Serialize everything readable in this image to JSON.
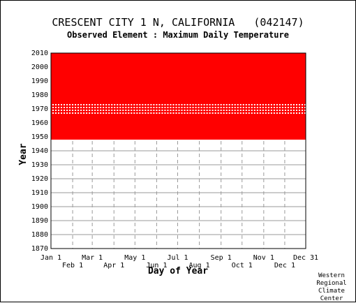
{
  "chart_data": {
    "type": "heatmap",
    "title": "CRESCENT CITY 1 N, CALIFORNIA   (042147)",
    "subtitle": "Observed Element : Maximum Daily Temperature",
    "xlabel": "Day of Year",
    "ylabel": "Year",
    "x_ticks_top": [
      "Jan 1",
      "Mar 1",
      "May 1",
      "Jul 1",
      "Sep 1",
      "Nov 1",
      "Dec 31"
    ],
    "x_ticks_bottom": [
      "Feb 1",
      "Apr 1",
      "Jun 1",
      "Aug 1",
      "Oct 1",
      "Dec 1"
    ],
    "x_tick_days": [
      1,
      32,
      60,
      91,
      121,
      152,
      182,
      213,
      244,
      274,
      305,
      335,
      365
    ],
    "y_ticks": [
      2010,
      2000,
      1990,
      1980,
      1970,
      1960,
      1950,
      1940,
      1930,
      1920,
      1910,
      1900,
      1890,
      1880,
      1870
    ],
    "xlim": [
      1,
      365
    ],
    "ylim": [
      1870,
      2010
    ],
    "data_period_years": [
      1948,
      2010
    ],
    "data_color": "#ff0000",
    "sparse_years": [
      1967,
      1969,
      1971,
      1973
    ],
    "grid": true
  },
  "credit": [
    "Western",
    "Regional",
    "Climate",
    "Center"
  ]
}
